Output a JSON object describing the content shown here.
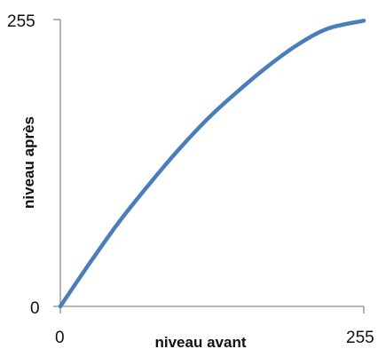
{
  "chart_data": {
    "type": "line",
    "xlabel": "niveau avant",
    "ylabel": "niveau après",
    "xlim": [
      0,
      255
    ],
    "ylim": [
      0,
      255
    ],
    "x_ticks": [
      "0",
      "255"
    ],
    "y_ticks": [
      "0",
      "255"
    ],
    "grid": false,
    "legend": "none",
    "series": [
      {
        "color": "#4a7ebb",
        "x": [
          0,
          25,
          50,
          75,
          100,
          125,
          150,
          175,
          200,
          225,
          255
        ],
        "y": [
          0,
          39,
          76,
          109,
          140,
          168,
          192,
          214,
          233,
          247,
          254
        ]
      }
    ]
  }
}
